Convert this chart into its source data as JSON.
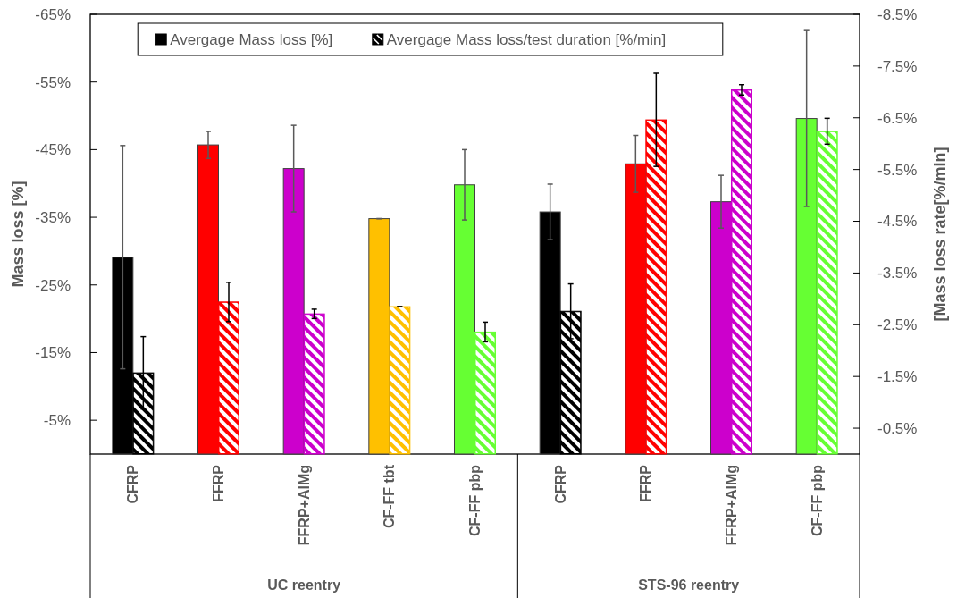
{
  "chart_data": {
    "type": "bar",
    "xlabel": null,
    "ylabel": "Mass loss [%]",
    "y2label": "[Mass loss rate[%/min]",
    "categories": [
      "CFRP",
      "FFRP",
      "FFRP+AlMg",
      "CF-FF tbt",
      "CF-FF pbp",
      "CFRP",
      "FFRP",
      "FFRP+AlMg",
      "CF-FF pbp"
    ],
    "series": [
      {
        "name": "Avergage Mass loss [%]",
        "color": "#000000",
        "colors": [
          "#000000",
          "#ff0000",
          "#cc00cc",
          "#ffc000",
          "#66ff33",
          "#000000",
          "#ff0000",
          "#cc00cc",
          "#66ff33"
        ],
        "values": [
          -29.1,
          -45.7,
          -42.2,
          -34.8,
          -39.8,
          -35.8,
          -42.9,
          -37.3,
          -49.6
        ],
        "errors": [
          16.5,
          2,
          6.4,
          0,
          5.2,
          4.1,
          4.2,
          3.9,
          13
        ]
      },
      {
        "name": "Avergage Mass loss/test duration [%/min]",
        "color": "#000000",
        "axis": "y2",
        "colors": [
          "#000000",
          "#ff0000",
          "#cc00cc",
          "#ffc000",
          "#66ff33",
          "#000000",
          "#ff0000",
          "#cc00cc",
          "#66ff33"
        ],
        "values": [
          -1.57,
          -2.94,
          -2.71,
          -2.85,
          -2.36,
          -2.76,
          -6.46,
          -7.04,
          -6.24
        ],
        "errors": [
          0.7,
          0.38,
          0.09,
          0,
          0.19,
          0.53,
          0.9,
          0.1,
          0.25
        ]
      }
    ],
    "ylim": [
      0,
      -65
    ],
    "yticks": [
      {
        "value": -65,
        "label": "-65%"
      },
      {
        "value": -55,
        "label": "-55%"
      },
      {
        "value": -45,
        "label": "-45%"
      },
      {
        "value": -35,
        "label": "-35%"
      },
      {
        "value": -25,
        "label": "-25%"
      },
      {
        "value": -15,
        "label": "-15%"
      },
      {
        "value": -5,
        "label": "-5%"
      }
    ],
    "y2lim": [
      0,
      -8.5
    ],
    "y2ticks": [
      {
        "value": -8.5,
        "label": "-8.5%"
      },
      {
        "value": -7.5,
        "label": "-7.5%"
      },
      {
        "value": -6.5,
        "label": "-6.5%"
      },
      {
        "value": -5.5,
        "label": "-5.5%"
      },
      {
        "value": -4.5,
        "label": "-4.5%"
      },
      {
        "value": -3.5,
        "label": "-3.5%"
      },
      {
        "value": -2.5,
        "label": "-2.5%"
      },
      {
        "value": -1.5,
        "label": "-1.5%"
      },
      {
        "value": -0.5,
        "label": "-0.5%"
      }
    ],
    "annotations": [
      "UC reentry",
      "STS-96 reentry"
    ],
    "legend": "top",
    "grid": false
  }
}
